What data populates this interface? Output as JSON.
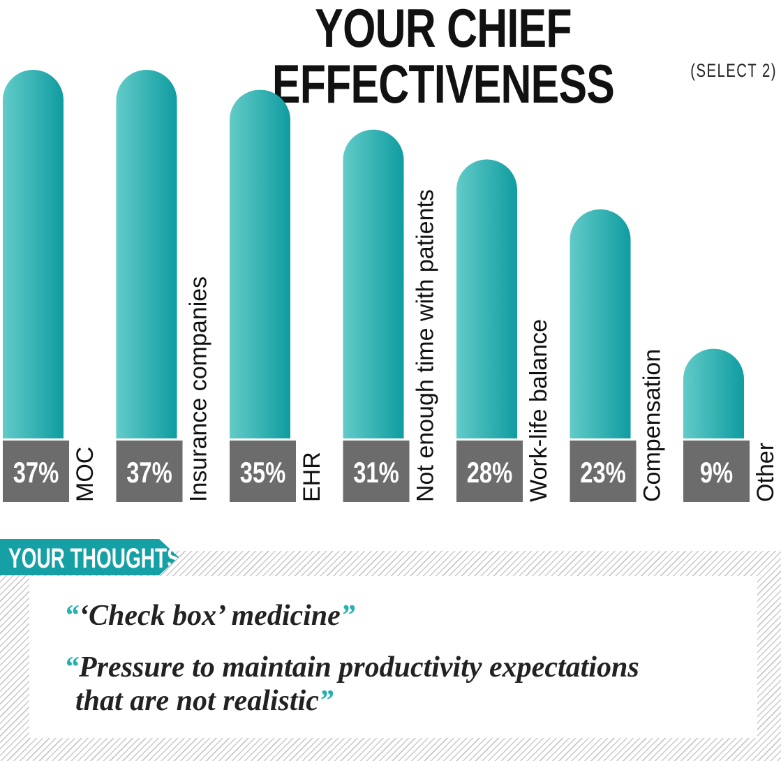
{
  "header": {
    "title": "YOUR CHIEF EFFECTIVENESS",
    "subtitle": "(SELECT 2)"
  },
  "chart_data": {
    "type": "bar",
    "title": "YOUR CHIEF EFFECTIVENESS",
    "subtitle": "(SELECT 2)",
    "categories": [
      "MOC",
      "Insurance companies",
      "EHR",
      "Not enough time with patients",
      "Work-life balance",
      "Compensation",
      "Other"
    ],
    "values": [
      37,
      37,
      35,
      31,
      28,
      23,
      9
    ],
    "value_labels": [
      "37%",
      "37%",
      "35%",
      "31%",
      "28%",
      "23%",
      "9%"
    ],
    "unit": "%",
    "ylim": [
      0,
      37
    ],
    "grid": false,
    "colors": {
      "bar": "#1aa5a8",
      "bar_light": "#5cc9c6",
      "label_box": "#6c6c6c"
    }
  },
  "thoughts": {
    "heading": "YOUR THOUGHTS",
    "quote1": {
      "open": "“",
      "text": "‘Check box’ medicine",
      "close": "”"
    },
    "quote2": {
      "open": "“",
      "line1": "Pressure to maintain productivity expectations",
      "line2": "that are not realistic",
      "close": "”"
    },
    "accent": "#14a0a4"
  }
}
